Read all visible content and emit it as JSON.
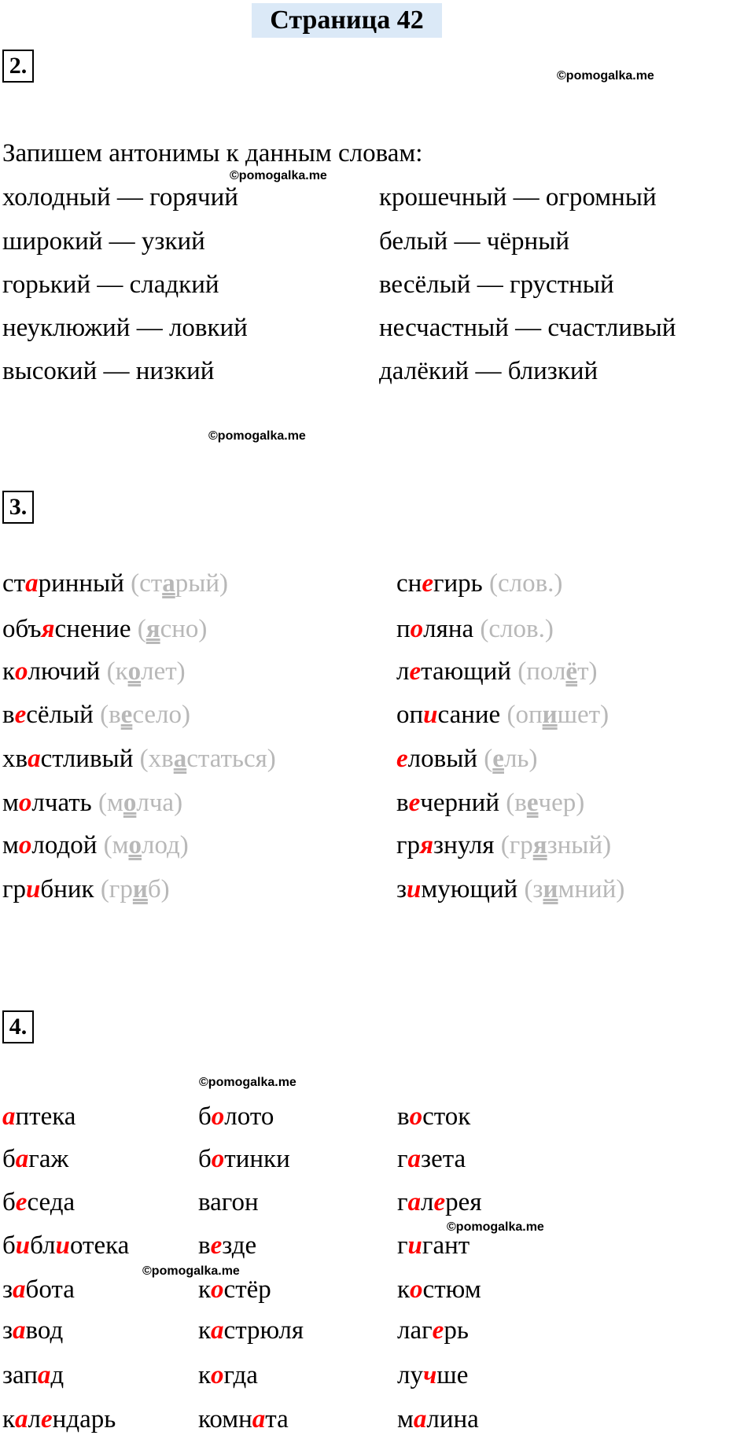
{
  "title": "Страница 42",
  "watermark": "©pomogalka.me",
  "section2": {
    "number": "2.",
    "intro": "Запишем антонимы к данным словам:",
    "left": [
      "холодный — горячий",
      "широкий — узкий",
      "горький — сладкий",
      "неуклюжий — ловкий",
      "высокий — низкий"
    ],
    "right": [
      "крошечный — огромный",
      "белый — чёрный",
      "весёлый — грустный",
      "несчастный — счастливый",
      "далёкий — близкий"
    ]
  },
  "section3": {
    "number": "3.",
    "left": [
      {
        "word": [
          "ст",
          "а",
          "ринный"
        ],
        "hint": [
          "(ст",
          "а",
          "рый)"
        ]
      },
      {
        "word": [
          "объ",
          "я",
          "снение"
        ],
        "hint": [
          "(",
          "я",
          "сно)"
        ]
      },
      {
        "word": [
          "к",
          "о",
          "лючий"
        ],
        "hint": [
          "(к",
          "о",
          "лет)"
        ]
      },
      {
        "word": [
          "в",
          "е",
          "сёлый"
        ],
        "hint": [
          "(в",
          "е",
          "село)"
        ]
      },
      {
        "word": [
          "хв",
          "а",
          "стливый"
        ],
        "hint": [
          "(хв",
          "а",
          "статься)"
        ]
      },
      {
        "word": [
          "м",
          "о",
          "лчать"
        ],
        "hint": [
          "(м",
          "о",
          "лча)"
        ]
      },
      {
        "word": [
          "м",
          "о",
          "лодой"
        ],
        "hint": [
          "(м",
          "о",
          "лод)"
        ]
      },
      {
        "word": [
          "гр",
          "и",
          "бник"
        ],
        "hint": [
          "(гр",
          "и",
          "б)"
        ]
      }
    ],
    "right": [
      {
        "word": [
          "сн",
          "е",
          "гирь"
        ],
        "hint": [
          "(слов.)"
        ]
      },
      {
        "word": [
          "п",
          "о",
          "ляна"
        ],
        "hint": [
          "(слов.)"
        ]
      },
      {
        "word": [
          "л",
          "е",
          "тающий"
        ],
        "hint": [
          "(пол",
          "ё",
          "т)"
        ]
      },
      {
        "word": [
          "оп",
          "и",
          "сание"
        ],
        "hint": [
          "(оп",
          "и",
          "шет)"
        ]
      },
      {
        "word": [
          "",
          "е",
          "ловый"
        ],
        "hint": [
          "(",
          "е",
          "ль)"
        ]
      },
      {
        "word": [
          "в",
          "е",
          "черний"
        ],
        "hint": [
          "(в",
          "е",
          "чер)"
        ]
      },
      {
        "word": [
          "гр",
          "я",
          "знуля"
        ],
        "hint": [
          "(гр",
          "я",
          "зный)"
        ]
      },
      {
        "word": [
          "з",
          "и",
          "мующий"
        ],
        "hint": [
          "(з",
          "и",
          "мний)"
        ]
      }
    ]
  },
  "section4": {
    "number": "4.",
    "columns": [
      [
        [
          "",
          "а",
          "птека"
        ],
        [
          "б",
          "а",
          "гаж"
        ],
        [
          "б",
          "е",
          "седа"
        ],
        [
          "б",
          "и",
          "бл",
          "и",
          "отека"
        ],
        [
          "з",
          "а",
          "бота"
        ],
        [
          "з",
          "а",
          "вод"
        ],
        [
          "зап",
          "а",
          "д"
        ],
        [
          "к",
          "а",
          "л",
          "е",
          "ндарь"
        ]
      ],
      [
        [
          "б",
          "о",
          "лото"
        ],
        [
          "б",
          "о",
          "тинки"
        ],
        [
          "вагон"
        ],
        [
          "в",
          "е",
          "зде"
        ],
        [
          "к",
          "о",
          "стёр"
        ],
        [
          "к",
          "а",
          "стрюля"
        ],
        [
          "к",
          "о",
          "гда"
        ],
        [
          "комн",
          "а",
          "та"
        ]
      ],
      [
        [
          "в",
          "о",
          "сток"
        ],
        [
          "г",
          "а",
          "зета"
        ],
        [
          "г",
          "а",
          "л",
          "е",
          "рея"
        ],
        [
          "г",
          "и",
          "гант"
        ],
        [
          "к",
          "о",
          "стюм"
        ],
        [
          "лаг",
          "е",
          "рь"
        ],
        [
          "лу",
          "ч",
          "ше"
        ],
        [
          "м",
          "а",
          "лина"
        ]
      ]
    ]
  },
  "colors": {
    "highlight": "#ff0000",
    "hint": "#b8b8b8",
    "title_bg": "#dbe9f7"
  }
}
